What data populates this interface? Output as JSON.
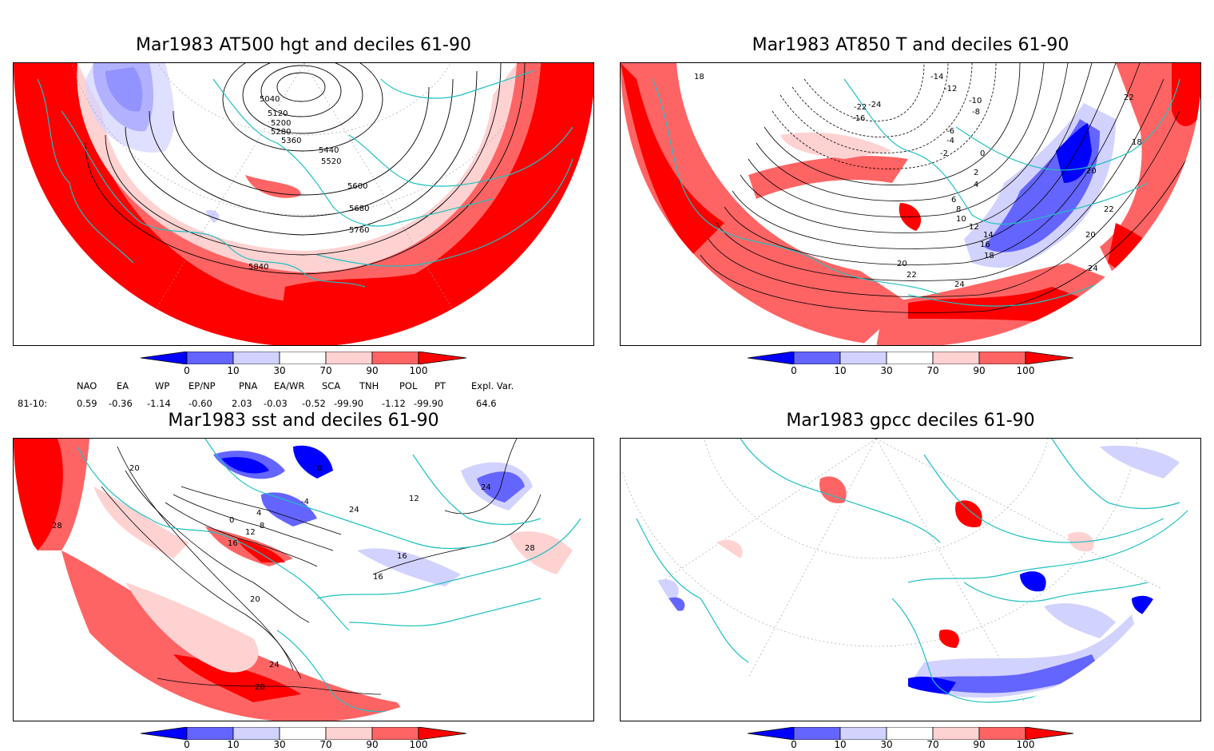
{
  "panels": [
    {
      "id": "p1",
      "title": "Mar1983 AT500 hgt and deciles 61-90",
      "contour_labels": [
        "5040",
        "5120",
        "5200",
        "5280",
        "5360",
        "5440",
        "5520",
        "5600",
        "5680",
        "5760",
        "5840"
      ]
    },
    {
      "id": "p2",
      "title": "Mar1983 AT850 T and deciles 61-90",
      "contour_labels": [
        "18",
        "-14",
        "-12",
        "-10",
        "-8",
        "-16",
        "-22",
        "-24",
        "-6",
        "-4",
        "-2",
        "0",
        "2",
        "4",
        "6",
        "8",
        "10",
        "12",
        "14",
        "16",
        "18",
        "20",
        "22",
        "24",
        "20",
        "22",
        "18",
        "20",
        "22",
        "24"
      ]
    },
    {
      "id": "p3",
      "title": "Mar1983 sst and deciles 61-90",
      "contour_labels": [
        "20",
        "28",
        "0",
        "4",
        "8",
        "12",
        "16",
        "20",
        "24",
        "28",
        "16",
        "16",
        "24",
        "28",
        "0",
        "-4",
        "12",
        "24"
      ]
    },
    {
      "id": "p4",
      "title": "Mar1983 gpcc deciles 61-90",
      "contour_labels": []
    }
  ],
  "colorbar": {
    "ticks": [
      "0",
      "10",
      "30",
      "70",
      "90",
      "100"
    ],
    "colors": [
      "#0000ff",
      "#6464ff",
      "#d2d2ff",
      "#ffffff",
      "#ffd2d2",
      "#ff6464",
      "#ff0000"
    ]
  },
  "indices": {
    "headers": [
      "NAO",
      "EA",
      "WP",
      "EP/NP",
      "PNA",
      "EA/WR",
      "SCA",
      "TNH",
      "POL",
      "PT",
      "Expl. Var."
    ],
    "row_label": "81-10:",
    "values": [
      "0.59",
      "-0.36",
      "-1.14",
      "-0.60",
      "2.03",
      "-0.03",
      "-0.52",
      "-99.90",
      "-1.12",
      "-99.90",
      "64.6"
    ]
  },
  "colors": {
    "coastline": "#20c0c0",
    "contour": "#000000",
    "grid": "#999999"
  }
}
